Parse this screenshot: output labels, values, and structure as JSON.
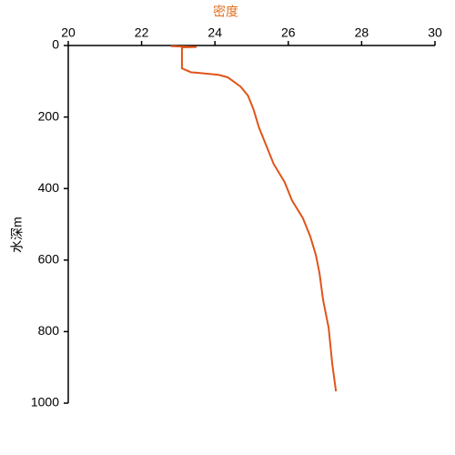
{
  "chart_data": {
    "type": "line",
    "x_label": "密度",
    "y_label": "水深m",
    "xlim": [
      20,
      30
    ],
    "xticks": [
      20,
      22,
      24,
      26,
      28,
      30
    ],
    "ylim": [
      0,
      1000
    ],
    "yticks": [
      0,
      200,
      400,
      600,
      800,
      1000
    ],
    "y_inverted": true,
    "x_axis_position": "top",
    "label_color": "#e07020",
    "series": [
      {
        "color": "#e0541a",
        "x": [
          22.8,
          23.5,
          23.1,
          23.1,
          23.35,
          23.5,
          24.1,
          24.35,
          24.7,
          24.9,
          25.05,
          25.2,
          25.4,
          25.6,
          25.9,
          26.1,
          26.4,
          26.6,
          26.75,
          26.85,
          26.95,
          27.1,
          27.2,
          27.3
        ],
        "values": [
          2,
          4,
          5,
          64,
          75,
          76,
          82,
          89,
          115,
          140,
          178,
          229,
          280,
          331,
          382,
          433,
          483,
          534,
          585,
          636,
          712,
          789,
          891,
          967
        ]
      }
    ]
  }
}
